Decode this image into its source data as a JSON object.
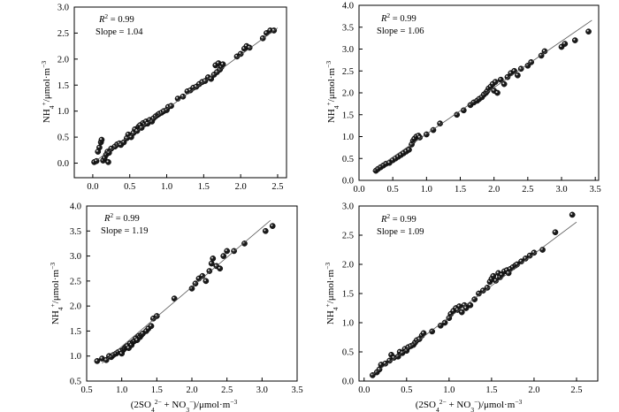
{
  "chart_data": [
    {
      "type": "scatter",
      "title": "",
      "xlabel": "",
      "ylabel": "NH4+/μmol·m−3",
      "xlim": [
        -0.25,
        2.62
      ],
      "ylim": [
        -0.28,
        3.0
      ],
      "xticks": [
        "0.0",
        "0.5",
        "1.0",
        "1.5",
        "2.0",
        "2.5"
      ],
      "yticks": [
        "0.0",
        "0.5",
        "1.0",
        "1.5",
        "2.0",
        "2.5",
        "3.0"
      ],
      "annotation": {
        "r2_label": "R",
        "r2_sup": "2",
        "r2_value": " = 0.99",
        "slope": "Slope = 1.04"
      },
      "fit": {
        "slope": 1.04,
        "intercept": 0.0,
        "x_range": [
          0.05,
          2.5
        ]
      },
      "series": [
        {
          "points": [
            [
              0.02,
              0.02
            ],
            [
              0.05,
              0.04
            ],
            [
              0.07,
              0.22
            ],
            [
              0.09,
              0.3
            ],
            [
              0.11,
              0.4
            ],
            [
              0.12,
              0.45
            ],
            [
              0.14,
              0.05
            ],
            [
              0.16,
              0.1
            ],
            [
              0.18,
              0.16
            ],
            [
              0.2,
              0.22
            ],
            [
              0.22,
              0.2
            ],
            [
              0.21,
              0.02
            ],
            [
              0.25,
              0.28
            ],
            [
              0.3,
              0.32
            ],
            [
              0.33,
              0.36
            ],
            [
              0.36,
              0.38
            ],
            [
              0.38,
              0.35
            ],
            [
              0.42,
              0.4
            ],
            [
              0.46,
              0.48
            ],
            [
              0.48,
              0.55
            ],
            [
              0.52,
              0.5
            ],
            [
              0.55,
              0.58
            ],
            [
              0.57,
              0.65
            ],
            [
              0.6,
              0.62
            ],
            [
              0.62,
              0.7
            ],
            [
              0.64,
              0.73
            ],
            [
              0.66,
              0.68
            ],
            [
              0.68,
              0.77
            ],
            [
              0.7,
              0.75
            ],
            [
              0.72,
              0.8
            ],
            [
              0.74,
              0.76
            ],
            [
              0.77,
              0.83
            ],
            [
              0.8,
              0.8
            ],
            [
              0.82,
              0.86
            ],
            [
              0.85,
              0.9
            ],
            [
              0.88,
              0.93
            ],
            [
              0.9,
              0.95
            ],
            [
              0.93,
              0.97
            ],
            [
              0.96,
              1.0
            ],
            [
              1.0,
              1.02
            ],
            [
              1.02,
              1.08
            ],
            [
              1.06,
              1.1
            ],
            [
              1.15,
              1.24
            ],
            [
              1.22,
              1.28
            ],
            [
              1.28,
              1.38
            ],
            [
              1.32,
              1.4
            ],
            [
              1.36,
              1.45
            ],
            [
              1.4,
              1.47
            ],
            [
              1.44,
              1.52
            ],
            [
              1.48,
              1.56
            ],
            [
              1.52,
              1.58
            ],
            [
              1.56,
              1.65
            ],
            [
              1.6,
              1.62
            ],
            [
              1.64,
              1.7
            ],
            [
              1.66,
              1.88
            ],
            [
              1.68,
              1.75
            ],
            [
              1.7,
              1.92
            ],
            [
              1.72,
              1.8
            ],
            [
              1.74,
              1.85
            ],
            [
              1.76,
              1.9
            ],
            [
              1.95,
              2.05
            ],
            [
              2.0,
              2.1
            ],
            [
              2.05,
              2.2
            ],
            [
              2.08,
              2.25
            ],
            [
              2.12,
              2.22
            ],
            [
              2.3,
              2.4
            ],
            [
              2.35,
              2.5
            ],
            [
              2.4,
              2.55
            ],
            [
              2.45,
              2.55
            ]
          ]
        }
      ]
    },
    {
      "type": "scatter",
      "title": "",
      "xlabel": "",
      "ylabel": "NH4+/μmol·m−3",
      "xlim": [
        0.0,
        3.55
      ],
      "ylim": [
        0.0,
        4.0
      ],
      "xticks": [
        "0.0",
        "0.5",
        "1.0",
        "1.5",
        "2.0",
        "2.5",
        "3.0",
        "3.5"
      ],
      "yticks": [
        "0.0",
        "0.5",
        "1.0",
        "1.5",
        "2.0",
        "2.5",
        "3.0",
        "3.5",
        "4.0"
      ],
      "annotation": {
        "r2_label": "R",
        "r2_sup": "2",
        "r2_value": " = 0.99",
        "slope": "Slope = 1.06"
      },
      "fit": {
        "slope": 1.06,
        "intercept": 0.0,
        "x_range": [
          0.2,
          3.45
        ]
      },
      "series": [
        {
          "points": [
            [
              0.25,
              0.22
            ],
            [
              0.28,
              0.26
            ],
            [
              0.32,
              0.3
            ],
            [
              0.36,
              0.34
            ],
            [
              0.4,
              0.38
            ],
            [
              0.45,
              0.4
            ],
            [
              0.5,
              0.46
            ],
            [
              0.54,
              0.5
            ],
            [
              0.58,
              0.54
            ],
            [
              0.62,
              0.58
            ],
            [
              0.66,
              0.62
            ],
            [
              0.7,
              0.66
            ],
            [
              0.74,
              0.7
            ],
            [
              0.78,
              0.82
            ],
            [
              0.8,
              0.9
            ],
            [
              0.82,
              0.95
            ],
            [
              0.85,
              1.0
            ],
            [
              0.88,
              1.02
            ],
            [
              0.9,
              0.98
            ],
            [
              1.0,
              1.05
            ],
            [
              1.1,
              1.15
            ],
            [
              1.2,
              1.3
            ],
            [
              1.45,
              1.5
            ],
            [
              1.55,
              1.6
            ],
            [
              1.65,
              1.72
            ],
            [
              1.7,
              1.78
            ],
            [
              1.75,
              1.82
            ],
            [
              1.78,
              1.86
            ],
            [
              1.82,
              1.9
            ],
            [
              1.85,
              1.96
            ],
            [
              1.88,
              2.0
            ],
            [
              1.9,
              2.04
            ],
            [
              1.92,
              2.1
            ],
            [
              1.95,
              2.14
            ],
            [
              1.98,
              2.2
            ],
            [
              2.0,
              2.05
            ],
            [
              2.02,
              2.25
            ],
            [
              2.05,
              2.0
            ],
            [
              2.1,
              2.3
            ],
            [
              2.15,
              2.2
            ],
            [
              2.2,
              2.36
            ],
            [
              2.25,
              2.45
            ],
            [
              2.3,
              2.5
            ],
            [
              2.35,
              2.4
            ],
            [
              2.4,
              2.55
            ],
            [
              2.5,
              2.62
            ],
            [
              2.55,
              2.7
            ],
            [
              2.7,
              2.85
            ],
            [
              2.75,
              2.95
            ],
            [
              3.0,
              3.05
            ],
            [
              3.05,
              3.12
            ],
            [
              3.2,
              3.2
            ],
            [
              3.4,
              3.4
            ]
          ]
        }
      ]
    },
    {
      "type": "scatter",
      "title": "",
      "xlabel": "(2SO42− + NO3−)/μmol·m−3",
      "ylabel": "NH4+/μmol·m−3",
      "xlim": [
        0.5,
        3.5
      ],
      "ylim": [
        0.5,
        4.0
      ],
      "xticks": [
        "0.5",
        "1.0",
        "1.5",
        "2.0",
        "2.5",
        "3.0",
        "3.5"
      ],
      "yticks": [
        "0.5",
        "1.0",
        "1.5",
        "2.0",
        "2.5",
        "3.0",
        "3.5",
        "4.0"
      ],
      "annotation": {
        "r2_label": "R",
        "r2_sup": "2",
        "r2_value": " = 0.99",
        "slope": "Slope = 1.19"
      },
      "fit": {
        "slope": 1.19,
        "intercept": 0.0,
        "x_range": [
          0.72,
          3.12
        ]
      },
      "series": [
        {
          "points": [
            [
              0.65,
              0.9
            ],
            [
              0.72,
              0.95
            ],
            [
              0.78,
              0.92
            ],
            [
              0.82,
              1.0
            ],
            [
              0.85,
              0.98
            ],
            [
              0.88,
              1.02
            ],
            [
              0.92,
              1.05
            ],
            [
              0.95,
              1.08
            ],
            [
              0.98,
              1.1
            ],
            [
              1.0,
              1.05
            ],
            [
              1.02,
              1.12
            ],
            [
              1.04,
              1.15
            ],
            [
              1.06,
              1.18
            ],
            [
              1.08,
              1.2
            ],
            [
              1.1,
              1.16
            ],
            [
              1.12,
              1.25
            ],
            [
              1.14,
              1.22
            ],
            [
              1.16,
              1.28
            ],
            [
              1.18,
              1.3
            ],
            [
              1.2,
              1.35
            ],
            [
              1.22,
              1.32
            ],
            [
              1.24,
              1.4
            ],
            [
              1.26,
              1.38
            ],
            [
              1.28,
              1.42
            ],
            [
              1.3,
              1.45
            ],
            [
              1.35,
              1.5
            ],
            [
              1.38,
              1.55
            ],
            [
              1.42,
              1.6
            ],
            [
              1.45,
              1.75
            ],
            [
              1.5,
              1.8
            ],
            [
              1.75,
              2.15
            ],
            [
              2.0,
              2.35
            ],
            [
              2.05,
              2.45
            ],
            [
              2.1,
              2.55
            ],
            [
              2.15,
              2.6
            ],
            [
              2.2,
              2.5
            ],
            [
              2.25,
              2.7
            ],
            [
              2.28,
              2.85
            ],
            [
              2.3,
              2.95
            ],
            [
              2.35,
              2.8
            ],
            [
              2.4,
              2.75
            ],
            [
              2.45,
              3.0
            ],
            [
              2.5,
              3.1
            ],
            [
              2.6,
              3.1
            ],
            [
              2.75,
              3.25
            ],
            [
              3.05,
              3.5
            ],
            [
              3.15,
              3.6
            ]
          ]
        }
      ]
    },
    {
      "type": "scatter",
      "title": "",
      "xlabel": "(2SO42− + NO3−)/μmol·m−3",
      "ylabel": "NH4+/μmol·m−3",
      "xlim": [
        -0.06,
        2.75
      ],
      "ylim": [
        0.0,
        3.0
      ],
      "xticks": [
        "0.0",
        "0.5",
        "1.0",
        "1.5",
        "2.0",
        "2.5"
      ],
      "yticks": [
        "0.0",
        "0.5",
        "1.0",
        "1.5",
        "2.0",
        "2.5",
        "3.0"
      ],
      "annotation": {
        "r2_label": "R",
        "r2_sup": "2",
        "r2_value": " = 0.99",
        "slope": "Slope = 1.09"
      },
      "fit": {
        "slope": 1.09,
        "intercept": 0.0,
        "x_range": [
          0.08,
          2.5
        ]
      },
      "series": [
        {
          "points": [
            [
              0.1,
              0.1
            ],
            [
              0.15,
              0.15
            ],
            [
              0.18,
              0.2
            ],
            [
              0.2,
              0.28
            ],
            [
              0.25,
              0.3
            ],
            [
              0.3,
              0.35
            ],
            [
              0.32,
              0.45
            ],
            [
              0.35,
              0.4
            ],
            [
              0.4,
              0.42
            ],
            [
              0.42,
              0.5
            ],
            [
              0.45,
              0.48
            ],
            [
              0.48,
              0.55
            ],
            [
              0.5,
              0.52
            ],
            [
              0.52,
              0.58
            ],
            [
              0.55,
              0.6
            ],
            [
              0.58,
              0.62
            ],
            [
              0.6,
              0.66
            ],
            [
              0.62,
              0.7
            ],
            [
              0.65,
              0.72
            ],
            [
              0.68,
              0.78
            ],
            [
              0.7,
              0.82
            ],
            [
              0.8,
              0.85
            ],
            [
              0.9,
              0.95
            ],
            [
              0.95,
              1.0
            ],
            [
              1.0,
              1.08
            ],
            [
              1.02,
              1.15
            ],
            [
              1.05,
              1.2
            ],
            [
              1.08,
              1.25
            ],
            [
              1.1,
              1.22
            ],
            [
              1.12,
              1.28
            ],
            [
              1.15,
              1.18
            ],
            [
              1.18,
              1.3
            ],
            [
              1.2,
              1.25
            ],
            [
              1.25,
              1.3
            ],
            [
              1.3,
              1.4
            ],
            [
              1.35,
              1.5
            ],
            [
              1.4,
              1.55
            ],
            [
              1.45,
              1.6
            ],
            [
              1.48,
              1.7
            ],
            [
              1.5,
              1.75
            ],
            [
              1.52,
              1.8
            ],
            [
              1.55,
              1.72
            ],
            [
              1.58,
              1.85
            ],
            [
              1.6,
              1.78
            ],
            [
              1.62,
              1.82
            ],
            [
              1.65,
              1.88
            ],
            [
              1.68,
              1.9
            ],
            [
              1.7,
              1.85
            ],
            [
              1.72,
              1.92
            ],
            [
              1.75,
              1.95
            ],
            [
              1.78,
              1.98
            ],
            [
              1.8,
              2.0
            ],
            [
              1.85,
              2.05
            ],
            [
              1.9,
              2.1
            ],
            [
              1.95,
              2.15
            ],
            [
              2.0,
              2.2
            ],
            [
              2.1,
              2.25
            ],
            [
              2.25,
              2.55
            ],
            [
              2.45,
              2.85
            ]
          ]
        }
      ]
    }
  ]
}
